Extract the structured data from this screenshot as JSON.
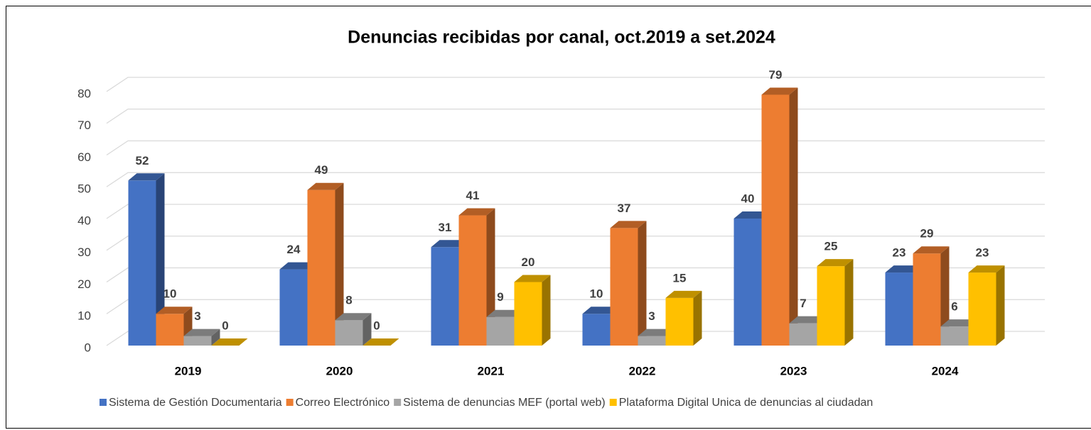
{
  "chart_data": {
    "type": "bar3d",
    "title": "Denuncias recibidas por canal, oct.2019 a set.2024",
    "categories": [
      "2019",
      "2020",
      "2021",
      "2022",
      "2023",
      "2024"
    ],
    "series": [
      {
        "name": "Sistema de Gestión Documentaria",
        "color": "#4472c4",
        "values": [
          52,
          24,
          31,
          10,
          40,
          23
        ]
      },
      {
        "name": "Correo Electrónico",
        "color": "#ed7d31",
        "values": [
          10,
          49,
          41,
          37,
          79,
          29
        ]
      },
      {
        "name": "Sistema de denuncias MEF (portal web)",
        "color": "#a5a5a5",
        "values": [
          3,
          8,
          9,
          3,
          7,
          6
        ]
      },
      {
        "name": "Plataforma Digital Unica de denuncias al ciudadan",
        "color": "#ffc000",
        "values": [
          0,
          0,
          20,
          15,
          25,
          23
        ]
      }
    ],
    "ylim": [
      0,
      80
    ],
    "yticks": [
      0,
      10,
      20,
      30,
      40,
      50,
      60,
      70,
      80
    ],
    "grid": true,
    "legend": "bottom"
  }
}
